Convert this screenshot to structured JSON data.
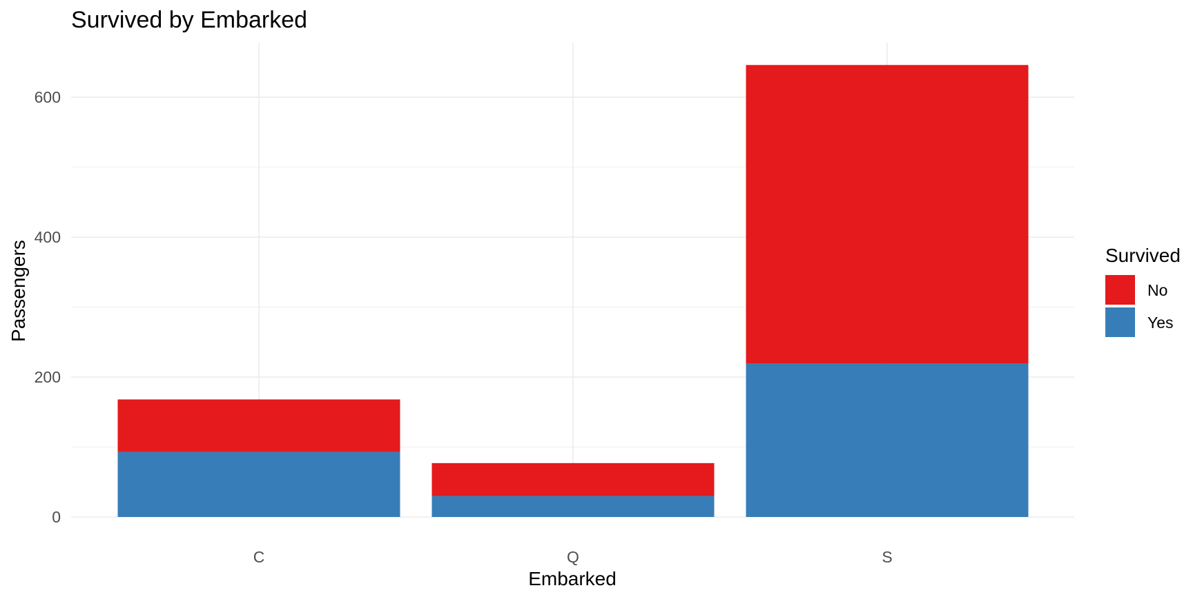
{
  "chart_data": {
    "type": "bar",
    "stacked": true,
    "title": "Survived by Embarked",
    "xlabel": "Embarked",
    "ylabel": "Passengers",
    "categories": [
      "C",
      "Q",
      "S"
    ],
    "series": [
      {
        "name": "No",
        "color": "#e41a1c",
        "values": [
          75,
          47,
          427
        ]
      },
      {
        "name": "Yes",
        "color": "#377eb8",
        "values": [
          93,
          30,
          219
        ]
      }
    ],
    "ylim": [
      0,
      677
    ],
    "yticks": [
      0,
      200,
      400,
      600
    ],
    "grid": true,
    "legend": {
      "title": "Survived",
      "position": "right"
    }
  }
}
